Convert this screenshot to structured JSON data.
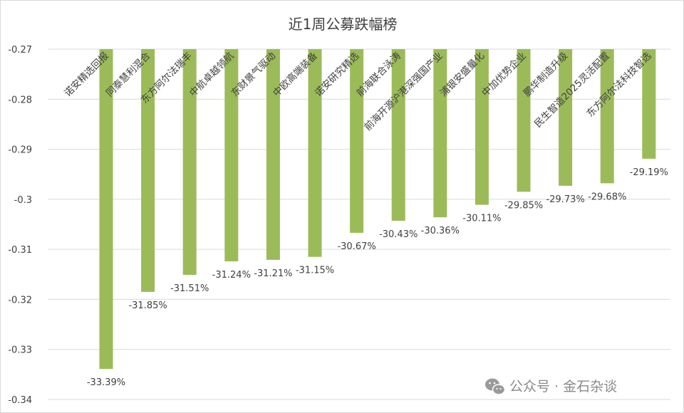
{
  "chart_data": {
    "type": "bar",
    "title": "近1周公募跌幅榜",
    "xlabel": "",
    "ylabel": "",
    "categories": [
      "诺安精选回报",
      "同泰慧利混合",
      "东方阿尔法瑞丰",
      "中航卓越领航",
      "东财景气驱动",
      "中欧高端装备",
      "诺安研究精选",
      "前海联合泳涛",
      "前海开源沪港深强国产业",
      "浦银安盛量化",
      "中加优势企业",
      "鹏华制造升级",
      "民生智造2025灵活配置",
      "东方阿尔法科技智选"
    ],
    "values": [
      -0.3339,
      -0.3185,
      -0.3151,
      -0.3124,
      -0.3121,
      -0.3115,
      -0.3067,
      -0.3043,
      -0.3036,
      -0.3011,
      -0.2985,
      -0.2973,
      -0.2968,
      -0.2919
    ],
    "data_labels": [
      "-33.39%",
      "-31.85%",
      "-31.51%",
      "-31.24%",
      "-31.21%",
      "-31.15%",
      "-30.67%",
      "-30.43%",
      "-30.36%",
      "-30.11%",
      "-29.85%",
      "-29.73%",
      "-29.68%",
      "-29.19%"
    ],
    "ylim": [
      -0.34,
      -0.27
    ],
    "yticks": [
      -0.27,
      -0.28,
      -0.29,
      -0.3,
      -0.31,
      -0.32,
      -0.33,
      -0.34
    ],
    "ytick_labels": [
      "-0.27",
      "-0.28",
      "-0.29",
      "-0.3",
      "-0.31",
      "-0.32",
      "-0.33",
      "-0.34"
    ],
    "grid": true,
    "legend": "none",
    "bar_color": "#9bbb59",
    "gridline_color": "#d9d9d9",
    "text_color": "#404040"
  },
  "watermark": {
    "icon": "wechat-icon",
    "text": "公众号 · 金石杂谈"
  }
}
